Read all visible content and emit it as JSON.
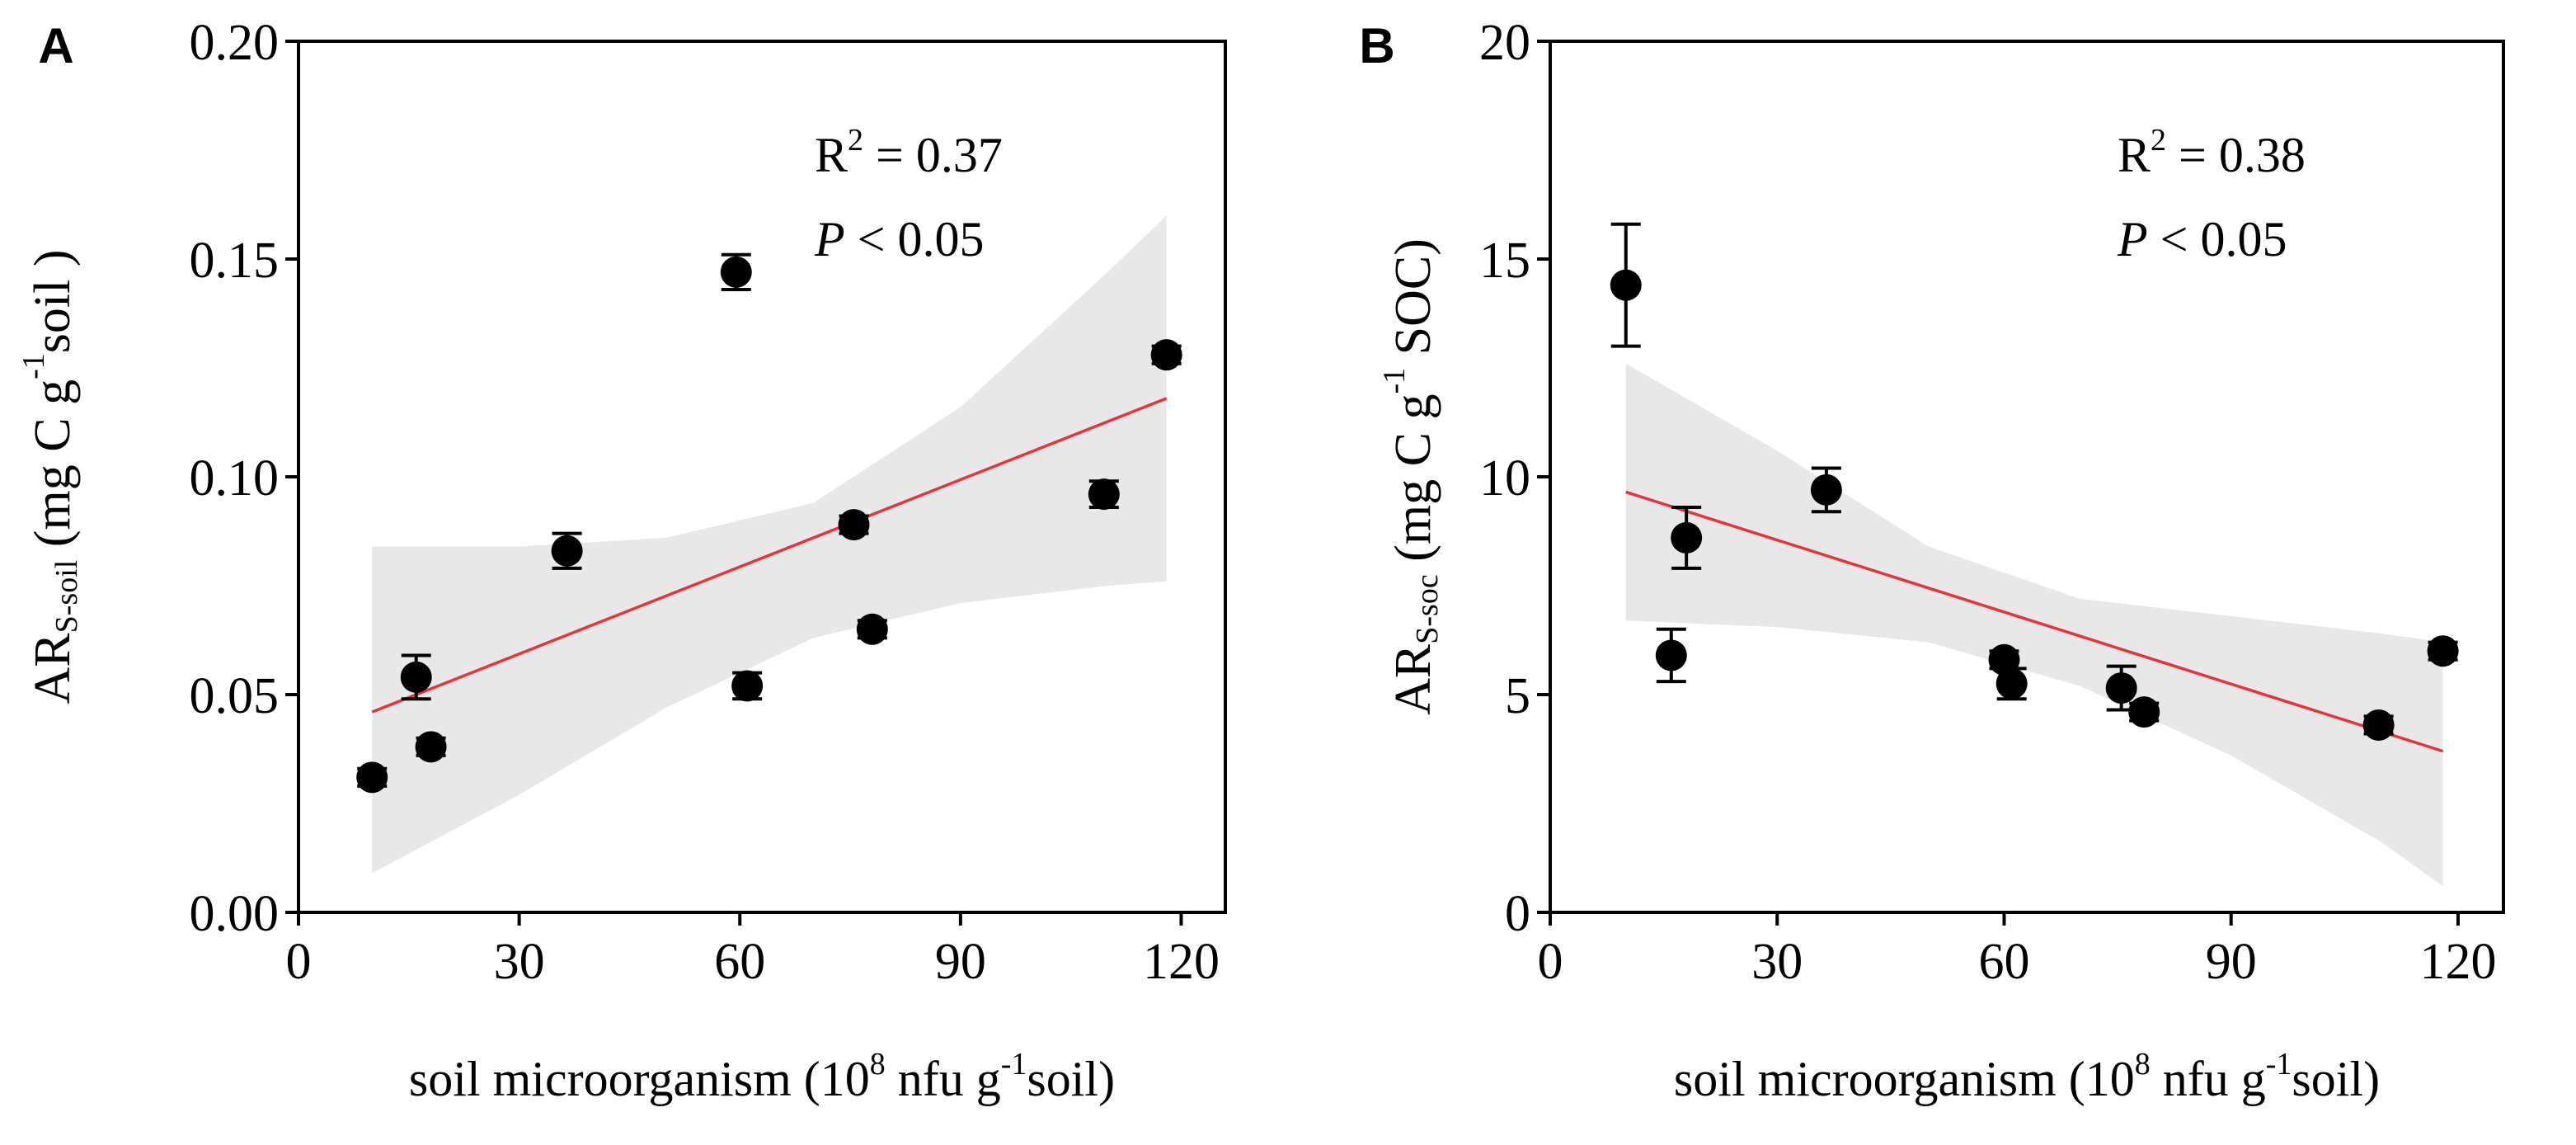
{
  "chart_data": [
    {
      "panel_label": "A",
      "type": "scatter",
      "xlabel": {
        "prefix": "soil microorganism (10",
        "sup": "8",
        "mid": " nfu g",
        "sup2": "-1",
        "suffix": "soil)"
      },
      "ylabel": {
        "base": "AR",
        "sub": "S-soil",
        "pre": " (mg C g",
        "sup": "-1",
        "post": "soil )"
      },
      "xlim": [
        0,
        126
      ],
      "ylim": [
        0,
        0.2
      ],
      "xticks": [
        0,
        30,
        60,
        90,
        120
      ],
      "yticks": [
        0.0,
        0.05,
        0.1,
        0.15,
        0.2
      ],
      "ytick_labels": [
        "0.00",
        "0.05",
        "0.10",
        "0.15",
        "0.20"
      ],
      "annotation": {
        "r2_text": "R",
        "r2_sup": "2",
        "r2_value": " = 0.37",
        "p_italic": "P",
        "p_text": " < 0.05"
      },
      "points": [
        {
          "x": 10,
          "y": 0.031,
          "err": 0.002
        },
        {
          "x": 16,
          "y": 0.054,
          "err": 0.005
        },
        {
          "x": 18,
          "y": 0.038,
          "err": 0.002
        },
        {
          "x": 36.5,
          "y": 0.083,
          "err": 0.004
        },
        {
          "x": 59.5,
          "y": 0.147,
          "err": 0.004
        },
        {
          "x": 61,
          "y": 0.052,
          "err": 0.003
        },
        {
          "x": 75.5,
          "y": 0.089,
          "err": 0.002
        },
        {
          "x": 78,
          "y": 0.065,
          "err": 0.002
        },
        {
          "x": 109.5,
          "y": 0.096,
          "err": 0.003
        },
        {
          "x": 118,
          "y": 0.128,
          "err": 0.002
        }
      ],
      "fit": {
        "x": [
          10,
          118
        ],
        "y": [
          0.046,
          0.118
        ]
      },
      "band": {
        "x": [
          10,
          30,
          50,
          70,
          90,
          110,
          118
        ],
        "upper": [
          0.084,
          0.084,
          0.086,
          0.094,
          0.116,
          0.147,
          0.16
        ],
        "lower": [
          0.009,
          0.027,
          0.047,
          0.063,
          0.071,
          0.075,
          0.076
        ]
      },
      "colors": {
        "point": "#000000",
        "fit": "#e8323c",
        "band": "#e8e8e8"
      }
    },
    {
      "panel_label": "B",
      "type": "scatter",
      "xlabel": {
        "prefix": "soil microorganism (10",
        "sup": "8",
        "mid": " nfu g",
        "sup2": "-1",
        "suffix": "soil)"
      },
      "ylabel": {
        "base": "AR",
        "sub": "S-soc",
        "pre": " (mg C g",
        "sup": "-1",
        "post": " SOC)"
      },
      "xlim": [
        0,
        126
      ],
      "ylim": [
        0,
        20
      ],
      "xticks": [
        0,
        30,
        60,
        90,
        120
      ],
      "yticks": [
        0,
        5,
        10,
        15,
        20
      ],
      "ytick_labels": [
        "0",
        "5",
        "10",
        "15",
        "20"
      ],
      "annotation": {
        "r2_text": "R",
        "r2_sup": "2",
        "r2_value": " = 0.38",
        "p_italic": "P",
        "p_text": " < 0.05"
      },
      "points": [
        {
          "x": 10,
          "y": 14.4,
          "err": 1.4
        },
        {
          "x": 16,
          "y": 5.9,
          "err": 0.6
        },
        {
          "x": 18,
          "y": 8.6,
          "err": 0.7
        },
        {
          "x": 36.5,
          "y": 9.7,
          "err": 0.5
        },
        {
          "x": 60,
          "y": 5.8,
          "err": 0.2
        },
        {
          "x": 61,
          "y": 5.25,
          "err": 0.35
        },
        {
          "x": 75.5,
          "y": 5.15,
          "err": 0.5
        },
        {
          "x": 78.5,
          "y": 4.6,
          "err": 0.2
        },
        {
          "x": 109.5,
          "y": 4.3,
          "err": 0.2
        },
        {
          "x": 118,
          "y": 6.0,
          "err": 0.2
        }
      ],
      "fit": {
        "x": [
          10,
          118
        ],
        "y": [
          9.65,
          3.7
        ]
      },
      "band": {
        "x": [
          10,
          30,
          50,
          70,
          90,
          110,
          118
        ],
        "upper": [
          12.6,
          10.6,
          8.4,
          7.2,
          6.8,
          6.4,
          6.2
        ],
        "lower": [
          6.7,
          6.55,
          6.2,
          5.2,
          3.6,
          1.6,
          0.6
        ]
      },
      "colors": {
        "point": "#000000",
        "fit": "#e8323c",
        "band": "#e8e8e8"
      }
    }
  ]
}
